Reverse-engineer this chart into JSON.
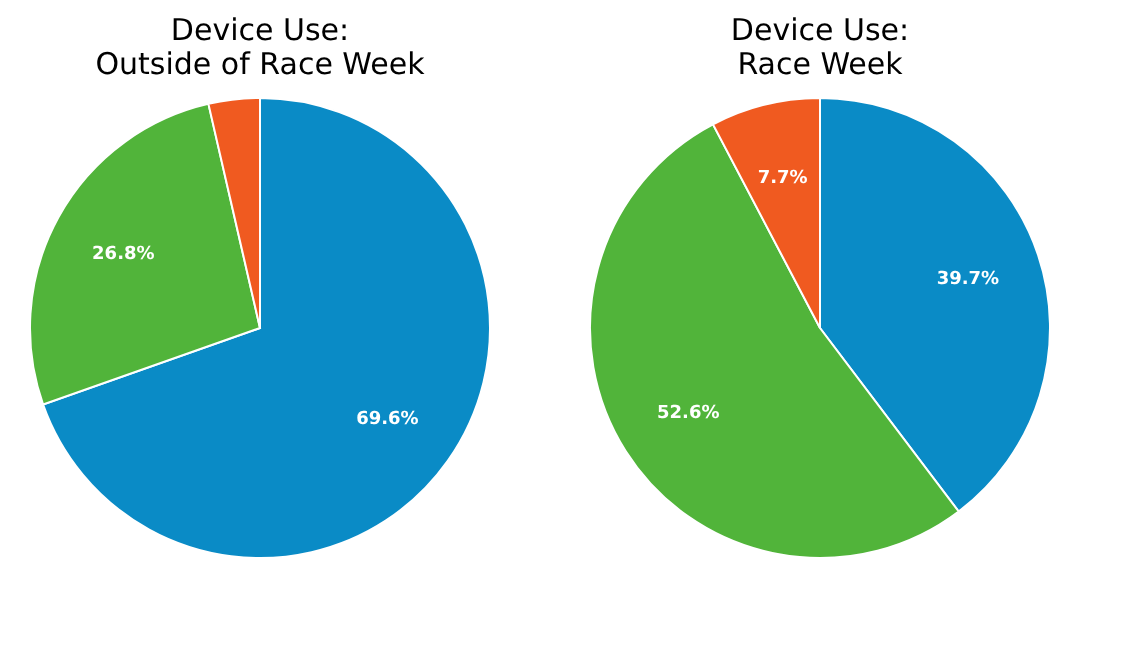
{
  "chart_data": [
    {
      "type": "pie",
      "title": "Device Use:\nOutside of Race Week",
      "categories": [
        null,
        null,
        null
      ],
      "values": [
        69.6,
        26.8,
        3.6
      ],
      "colors": [
        "#0a8bc6",
        "#51b43a",
        "#f05a20"
      ],
      "value_labels": [
        "69.6%",
        "26.8%",
        null
      ],
      "legend": false
    },
    {
      "type": "pie",
      "title": "Device Use:\nRace Week",
      "categories": [
        null,
        null,
        null
      ],
      "values": [
        39.7,
        52.6,
        7.7
      ],
      "colors": [
        "#0a8bc6",
        "#51b43a",
        "#f05a20"
      ],
      "value_labels": [
        "39.7%",
        "52.6%",
        "7.7%"
      ],
      "legend": false
    }
  ]
}
